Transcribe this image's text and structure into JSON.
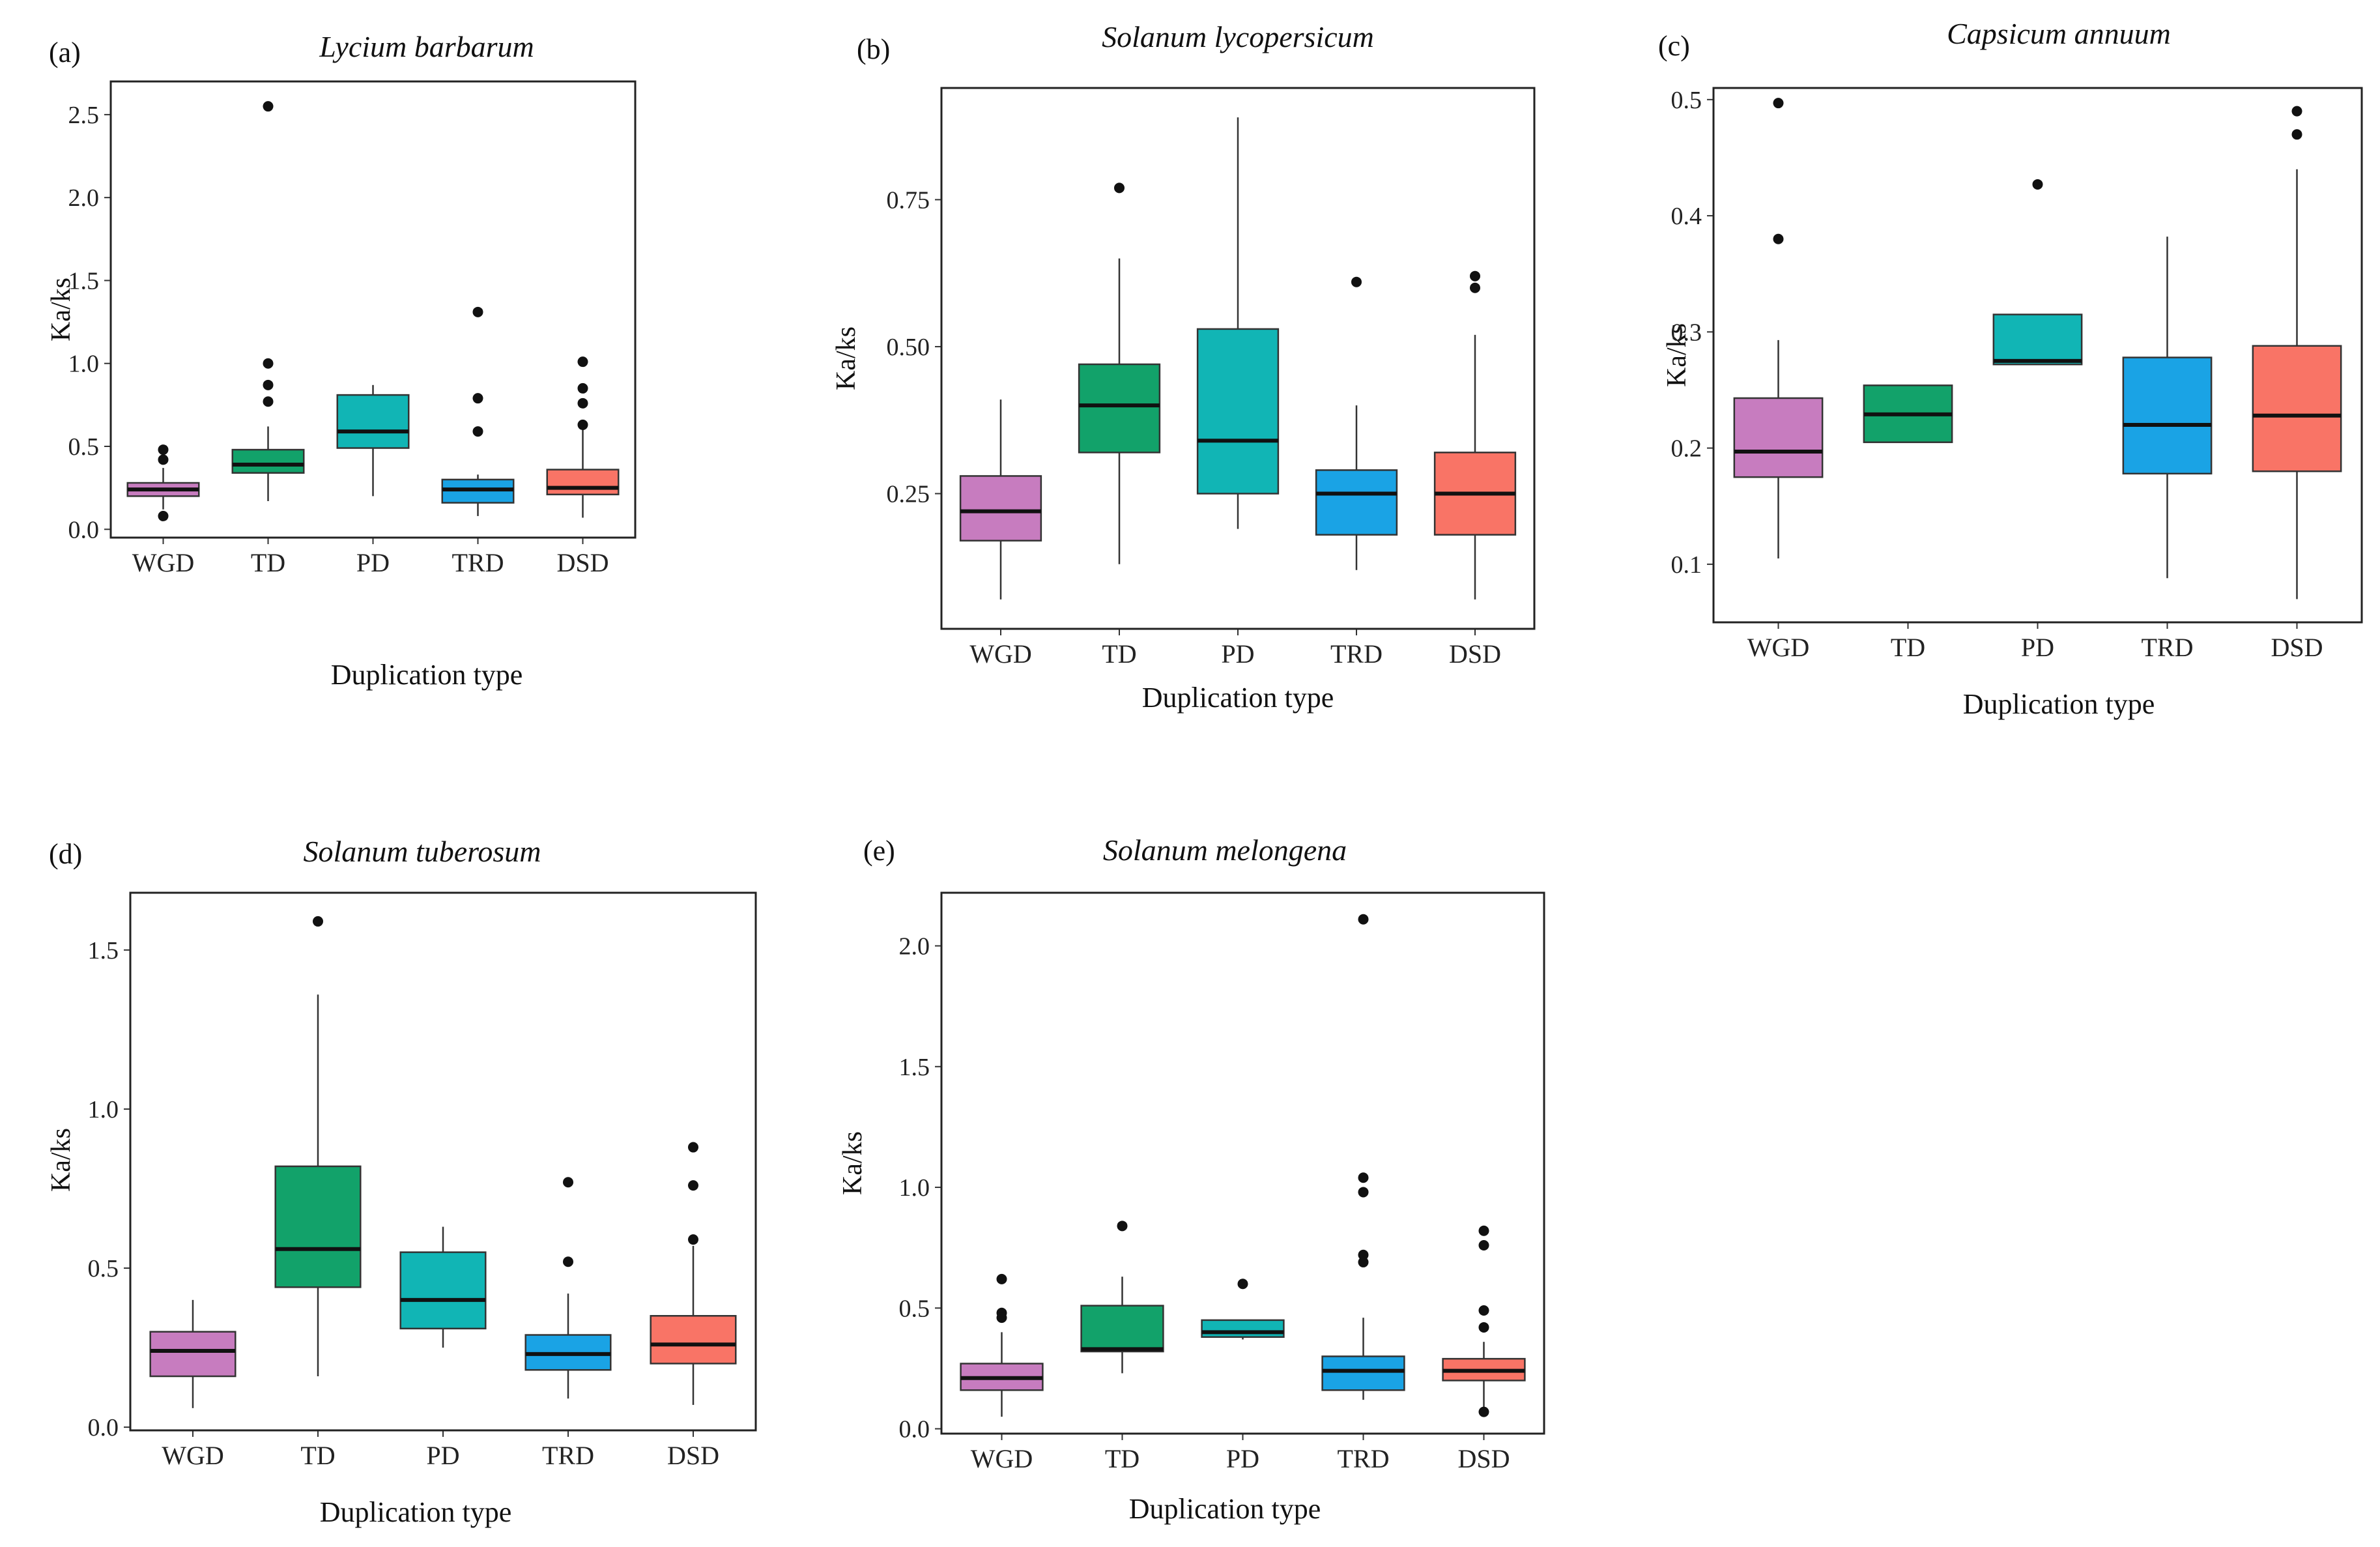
{
  "chart_data": [
    {
      "type": "box",
      "panel": "(a)",
      "title": "Lycium barbarum",
      "xlabel": "Duplication type",
      "ylabel": "Ka/ks",
      "ylim": [
        -0.05,
        2.7
      ],
      "yticks": [
        "0.0",
        "0.5",
        "1.0",
        "1.5",
        "2.0",
        "2.5"
      ],
      "categories": [
        "WGD",
        "TD",
        "PD",
        "TRD",
        "DSD"
      ],
      "boxes": [
        {
          "category": "WGD",
          "min": 0.12,
          "q1": 0.2,
          "median": 0.24,
          "q3": 0.28,
          "max": 0.37,
          "outliers": [
            0.48,
            0.42,
            0.08
          ]
        },
        {
          "category": "TD",
          "min": 0.17,
          "q1": 0.34,
          "median": 0.39,
          "q3": 0.48,
          "max": 0.62,
          "outliers": [
            2.55,
            1.0,
            0.87,
            0.77
          ]
        },
        {
          "category": "PD",
          "min": 0.2,
          "q1": 0.49,
          "median": 0.59,
          "q3": 0.81,
          "max": 0.87,
          "outliers": []
        },
        {
          "category": "TRD",
          "min": 0.08,
          "q1": 0.16,
          "median": 0.24,
          "q3": 0.3,
          "max": 0.33,
          "outliers": [
            1.31,
            0.79,
            0.59
          ]
        },
        {
          "category": "DSD",
          "min": 0.07,
          "q1": 0.21,
          "median": 0.25,
          "q3": 0.36,
          "max": 0.61,
          "outliers": [
            1.01,
            0.85,
            0.76,
            0.63
          ]
        }
      ]
    },
    {
      "type": "box",
      "panel": "(b)",
      "title": "Solanum lycopersicum",
      "xlabel": "Duplication type",
      "ylabel": "Ka/ks",
      "ylim": [
        0.02,
        0.94
      ],
      "yticks": [
        "0.25",
        "0.50",
        "0.75"
      ],
      "categories": [
        "WGD",
        "TD",
        "PD",
        "TRD",
        "DSD"
      ],
      "boxes": [
        {
          "category": "WGD",
          "min": 0.07,
          "q1": 0.17,
          "median": 0.22,
          "q3": 0.28,
          "max": 0.41,
          "outliers": []
        },
        {
          "category": "TD",
          "min": 0.13,
          "q1": 0.32,
          "median": 0.4,
          "q3": 0.47,
          "max": 0.65,
          "outliers": [
            0.77
          ]
        },
        {
          "category": "PD",
          "min": 0.19,
          "q1": 0.25,
          "median": 0.34,
          "q3": 0.53,
          "max": 0.89,
          "outliers": []
        },
        {
          "category": "TRD",
          "min": 0.12,
          "q1": 0.18,
          "median": 0.25,
          "q3": 0.29,
          "max": 0.4,
          "outliers": [
            0.61
          ]
        },
        {
          "category": "DSD",
          "min": 0.07,
          "q1": 0.18,
          "median": 0.25,
          "q3": 0.32,
          "max": 0.52,
          "outliers": [
            0.62,
            0.6
          ]
        }
      ]
    },
    {
      "type": "box",
      "panel": "(c)",
      "title": "Capsicum annuum",
      "xlabel": "Duplication type",
      "ylabel": "Ka/ks",
      "ylim": [
        0.05,
        0.51
      ],
      "yticks": [
        "0.1",
        "0.2",
        "0.3",
        "0.4",
        "0.5"
      ],
      "categories": [
        "WGD",
        "TD",
        "PD",
        "TRD",
        "DSD"
      ],
      "boxes": [
        {
          "category": "WGD",
          "min": 0.105,
          "q1": 0.175,
          "median": 0.197,
          "q3": 0.243,
          "max": 0.293,
          "outliers": [
            0.497,
            0.38
          ]
        },
        {
          "category": "TD",
          "min": 0.205,
          "q1": 0.205,
          "median": 0.229,
          "q3": 0.254,
          "max": 0.254,
          "outliers": []
        },
        {
          "category": "PD",
          "min": 0.272,
          "q1": 0.272,
          "median": 0.275,
          "q3": 0.315,
          "max": 0.315,
          "outliers": [
            0.427
          ]
        },
        {
          "category": "TRD",
          "min": 0.088,
          "q1": 0.178,
          "median": 0.22,
          "q3": 0.278,
          "max": 0.382,
          "outliers": []
        },
        {
          "category": "DSD",
          "min": 0.07,
          "q1": 0.18,
          "median": 0.228,
          "q3": 0.288,
          "max": 0.44,
          "outliers": [
            0.49,
            0.47
          ]
        }
      ]
    },
    {
      "type": "box",
      "panel": "(d)",
      "title": "Solanum tuberosum",
      "xlabel": "Duplication type",
      "ylabel": "Ka/ks",
      "ylim": [
        -0.01,
        1.68
      ],
      "yticks": [
        "0.0",
        "0.5",
        "1.0",
        "1.5"
      ],
      "categories": [
        "WGD",
        "TD",
        "PD",
        "TRD",
        "DSD"
      ],
      "boxes": [
        {
          "category": "WGD",
          "min": 0.06,
          "q1": 0.16,
          "median": 0.24,
          "q3": 0.3,
          "max": 0.4,
          "outliers": []
        },
        {
          "category": "TD",
          "min": 0.16,
          "q1": 0.44,
          "median": 0.56,
          "q3": 0.82,
          "max": 1.36,
          "outliers": [
            1.59
          ]
        },
        {
          "category": "PD",
          "min": 0.25,
          "q1": 0.31,
          "median": 0.4,
          "q3": 0.55,
          "max": 0.63,
          "outliers": []
        },
        {
          "category": "TRD",
          "min": 0.09,
          "q1": 0.18,
          "median": 0.23,
          "q3": 0.29,
          "max": 0.42,
          "outliers": [
            0.77,
            0.52
          ]
        },
        {
          "category": "DSD",
          "min": 0.07,
          "q1": 0.2,
          "median": 0.26,
          "q3": 0.35,
          "max": 0.57,
          "outliers": [
            0.88,
            0.76,
            0.59
          ]
        }
      ]
    },
    {
      "type": "box",
      "panel": "(e)",
      "title": "Solanum melongena",
      "xlabel": "Duplication type",
      "ylabel": "Ka/ks",
      "ylim": [
        -0.02,
        2.22
      ],
      "yticks": [
        "0.0",
        "0.5",
        "1.0",
        "1.5",
        "2.0"
      ],
      "categories": [
        "WGD",
        "TD",
        "PD",
        "TRD",
        "DSD"
      ],
      "boxes": [
        {
          "category": "WGD",
          "min": 0.05,
          "q1": 0.16,
          "median": 0.21,
          "q3": 0.27,
          "max": 0.4,
          "outliers": [
            0.62,
            0.48,
            0.46
          ]
        },
        {
          "category": "TD",
          "min": 0.23,
          "q1": 0.32,
          "median": 0.33,
          "q3": 0.51,
          "max": 0.63,
          "outliers": [
            0.84
          ]
        },
        {
          "category": "PD",
          "min": 0.37,
          "q1": 0.38,
          "median": 0.4,
          "q3": 0.45,
          "max": 0.45,
          "outliers": [
            0.6
          ]
        },
        {
          "category": "TRD",
          "min": 0.12,
          "q1": 0.16,
          "median": 0.24,
          "q3": 0.3,
          "max": 0.46,
          "outliers": [
            2.11,
            1.04,
            0.98,
            0.72,
            0.69
          ]
        },
        {
          "category": "DSD",
          "min": 0.08,
          "q1": 0.2,
          "median": 0.24,
          "q3": 0.29,
          "max": 0.36,
          "outliers": [
            0.82,
            0.76,
            0.49,
            0.42,
            0.07
          ]
        }
      ]
    }
  ],
  "colors": {
    "WGD": "#c77cbf",
    "TD": "#12a26a",
    "PD": "#11b5b5",
    "TRD": "#1aa3e5",
    "DSD": "#f97466"
  }
}
